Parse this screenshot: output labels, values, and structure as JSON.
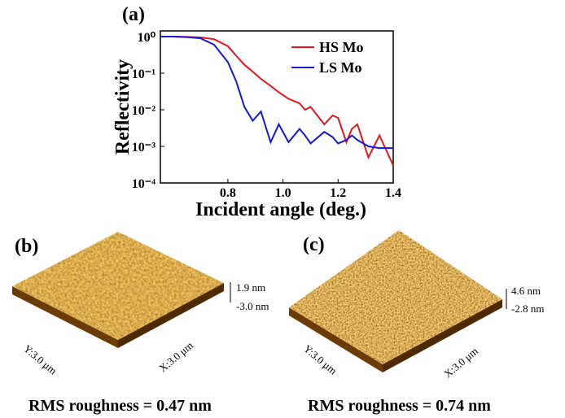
{
  "chart_data": {
    "type": "line",
    "title": "(a)",
    "x_label": "Incident angle (deg.)",
    "y_label": "Reflectivity",
    "x": [
      0.555,
      0.6,
      0.65,
      0.7,
      0.75,
      0.8,
      0.83,
      0.86,
      0.89,
      0.92,
      0.955,
      0.985,
      1.02,
      1.06,
      1.08,
      1.1,
      1.15,
      1.18,
      1.2,
      1.23,
      1.25,
      1.27,
      1.31,
      1.35,
      1.4
    ],
    "series": [
      {
        "name": "HS Mo",
        "color": "#e8141a",
        "values": [
          1,
          1,
          0.98,
          0.95,
          0.85,
          0.55,
          0.3,
          0.17,
          0.11,
          0.07,
          0.045,
          0.03,
          0.02,
          0.015,
          0.01,
          0.012,
          0.004,
          0.007,
          0.006,
          0.0013,
          0.003,
          0.004,
          0.0005,
          0.002,
          0.0003
        ]
      },
      {
        "name": "LS Mo",
        "color": "#1414e0",
        "values": [
          1,
          1,
          0.97,
          0.9,
          0.6,
          0.2,
          0.06,
          0.012,
          0.005,
          0.009,
          0.0013,
          0.004,
          0.0013,
          0.003,
          0.002,
          0.0012,
          0.0025,
          0.0018,
          0.0012,
          0.0015,
          0.002,
          0.0015,
          0.001,
          0.0009,
          0.0009
        ]
      }
    ],
    "xlim": [
      0.555,
      1.4
    ],
    "xticks": [
      0.8,
      {
        "value": 1,
        "label": "1.0"
      },
      1.2,
      1.4
    ],
    "ylim": [
      0.0001,
      1.43
    ],
    "yticks": [
      {
        "value": 1,
        "label": "10⁰"
      },
      {
        "value": 0.1,
        "label": "10⁻¹"
      },
      {
        "value": 0.01,
        "label": "10⁻²"
      },
      {
        "value": 0.001,
        "label": "10⁻³"
      },
      {
        "value": 0.0001,
        "label": "10⁻⁴"
      }
    ],
    "log_y": true,
    "legend": "upper right"
  },
  "panels": [
    {
      "label": "(b)",
      "z_max": "1.9 nm",
      "z_min": "-3.0 nm",
      "y_axis": "Y:3.0 μm",
      "x_axis": "X:3.0 μm",
      "caption": "RMS roughness = 0.47 nm"
    },
    {
      "label": "(c)",
      "z_max": "4.6 nm",
      "z_min": "-2.8 nm",
      "y_axis": "Y:3.0 μm",
      "x_axis": "X:3.0 μm",
      "caption": "RMS roughness  = 0.74 nm"
    }
  ]
}
